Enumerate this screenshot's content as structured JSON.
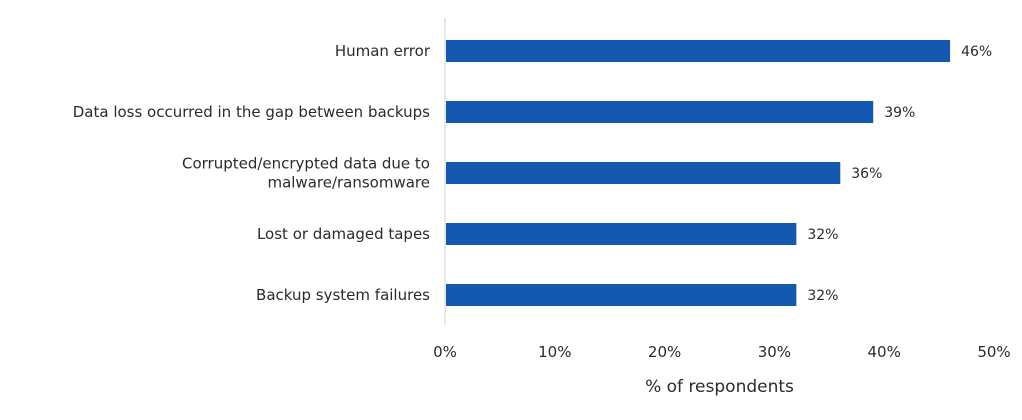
{
  "chart_data": {
    "type": "bar",
    "orientation": "horizontal",
    "categories": [
      [
        "Human error"
      ],
      [
        "Data loss occurred in the gap between backups"
      ],
      [
        "Corrupted/encrypted data due to",
        "malware/ransomware"
      ],
      [
        "Lost or damaged tapes"
      ],
      [
        "Backup system failures"
      ]
    ],
    "values": [
      46,
      39,
      36,
      32,
      32
    ],
    "data_labels": [
      "46%",
      "39%",
      "36%",
      "32%",
      "32%"
    ],
    "xlim": [
      0,
      50
    ],
    "x_ticks": [
      0,
      10,
      20,
      30,
      40,
      50
    ],
    "x_tick_labels": [
      "0%",
      "10%",
      "20%",
      "30%",
      "40%",
      "50%"
    ],
    "xlabel": "% of respondents",
    "ylabel": "",
    "title": "",
    "grid": false,
    "legend": "none",
    "colors": {
      "bar": "#1558b0",
      "axis": "#d0d0d0",
      "text": "#2b2b2b"
    }
  }
}
